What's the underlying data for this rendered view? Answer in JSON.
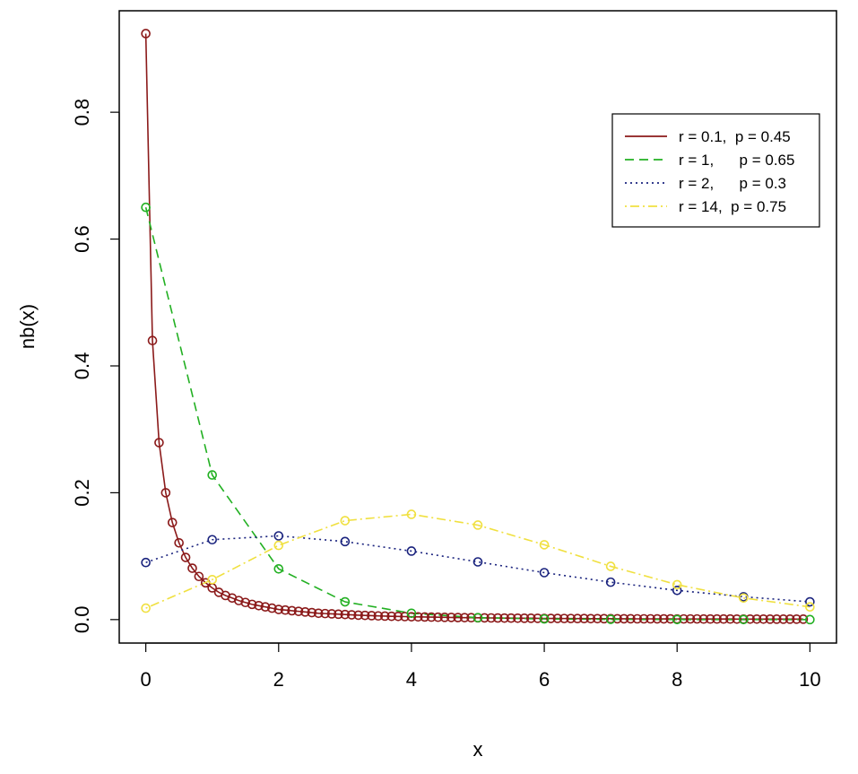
{
  "chart_data": {
    "type": "line",
    "title": "",
    "xlabel": "x",
    "ylabel": "nb(x)",
    "xlim": [
      -0.4,
      10.4
    ],
    "ylim": [
      -0.037,
      0.96
    ],
    "xticks": [
      "0",
      "2",
      "4",
      "6",
      "8",
      "10"
    ],
    "yticks": [
      "0.0",
      "0.2",
      "0.4",
      "0.6",
      "0.8"
    ],
    "grid": false,
    "legend_position": "top-right",
    "series": [
      {
        "name": "r = 0.1, p = 0.45",
        "legend_label": "r = 0.1,  p = 0.45",
        "color": "#8B1A1A",
        "dash": "solid",
        "x": [
          0,
          0.1,
          0.2,
          0.3,
          0.4,
          0.5,
          0.6,
          0.7,
          0.8,
          0.9,
          1.0,
          1.1,
          1.2,
          1.3,
          1.4,
          1.5,
          1.6,
          1.7,
          1.8,
          1.9,
          2.0,
          2.1,
          2.2,
          2.3,
          2.4,
          2.5,
          2.6,
          2.7,
          2.8,
          2.9,
          3.0,
          3.1,
          3.2,
          3.3,
          3.4,
          3.5,
          3.6,
          3.7,
          3.8,
          3.9,
          4.0,
          4.1,
          4.2,
          4.3,
          4.4,
          4.5,
          4.6,
          4.7,
          4.8,
          4.9,
          5.0,
          5.1,
          5.2,
          5.3,
          5.4,
          5.5,
          5.6,
          5.7,
          5.8,
          5.9,
          6.0,
          6.1,
          6.2,
          6.3,
          6.4,
          6.5,
          6.6,
          6.7,
          6.8,
          6.9,
          7.0,
          7.1,
          7.2,
          7.3,
          7.4,
          7.5,
          7.6,
          7.7,
          7.8,
          7.9,
          8.0,
          8.1,
          8.2,
          8.3,
          8.4,
          8.5,
          8.6,
          8.7,
          8.8,
          8.9,
          9.0,
          9.1,
          9.2,
          9.3,
          9.4,
          9.5,
          9.6,
          9.7,
          9.8,
          9.9
        ],
        "y": [
          0.924,
          0.44,
          0.279,
          0.2,
          0.153,
          0.121,
          0.098,
          0.081,
          0.068,
          0.058,
          0.05,
          0.043,
          0.038,
          0.034,
          0.03,
          0.027,
          0.024,
          0.022,
          0.02,
          0.018,
          0.016,
          0.015,
          0.014,
          0.013,
          0.012,
          0.011,
          0.01,
          0.0095,
          0.009,
          0.0085,
          0.008,
          0.0075,
          0.007,
          0.0066,
          0.0062,
          0.0058,
          0.0055,
          0.0052,
          0.005,
          0.0047,
          0.0045,
          0.0043,
          0.0041,
          0.0039,
          0.0037,
          0.0035,
          0.0034,
          0.0032,
          0.0031,
          0.003,
          0.0028,
          0.0027,
          0.0026,
          0.0025,
          0.0024,
          0.0023,
          0.0022,
          0.0021,
          0.0021,
          0.002,
          0.0019,
          0.0018,
          0.0018,
          0.0017,
          0.0017,
          0.0016,
          0.0016,
          0.0015,
          0.0015,
          0.0014,
          0.0014,
          0.0013,
          0.0013,
          0.0013,
          0.0012,
          0.0012,
          0.0012,
          0.0011,
          0.0011,
          0.0011,
          0.001,
          0.001,
          0.001,
          0.001,
          0.0009,
          0.0009,
          0.0009,
          0.0009,
          0.0009,
          0.0008,
          0.0008,
          0.0008,
          0.0008,
          0.0008,
          0.0007,
          0.0007,
          0.0007,
          0.0007,
          0.0007,
          0.0007
        ]
      },
      {
        "name": "r = 1, p = 0.65",
        "legend_label": "r = 1,      p = 0.65",
        "color": "#22B022",
        "dash": "dashed",
        "x": [
          0,
          1,
          2,
          3,
          4,
          5,
          6,
          7,
          8,
          9,
          10
        ],
        "y": [
          0.65,
          0.228,
          0.08,
          0.028,
          0.01,
          0.003,
          0.001,
          0.0004,
          0.0001,
          0.0001,
          0.0
        ]
      },
      {
        "name": "r = 2, p = 0.3",
        "legend_label": "r = 2,      p = 0.3",
        "color": "#1A237E",
        "dash": "dotted",
        "x": [
          0,
          1,
          2,
          3,
          4,
          5,
          6,
          7,
          8,
          9,
          10
        ],
        "y": [
          0.09,
          0.126,
          0.132,
          0.123,
          0.108,
          0.091,
          0.074,
          0.059,
          0.046,
          0.036,
          0.028
        ]
      },
      {
        "name": "r = 14, p = 0.75",
        "legend_label": "r = 14,  p = 0.75",
        "color": "#F0E040",
        "dash": "dotdash",
        "x": [
          0,
          1,
          2,
          3,
          4,
          5,
          6,
          7,
          8,
          9,
          10
        ],
        "y": [
          0.018,
          0.063,
          0.117,
          0.156,
          0.166,
          0.149,
          0.118,
          0.084,
          0.055,
          0.034,
          0.02
        ]
      }
    ]
  }
}
